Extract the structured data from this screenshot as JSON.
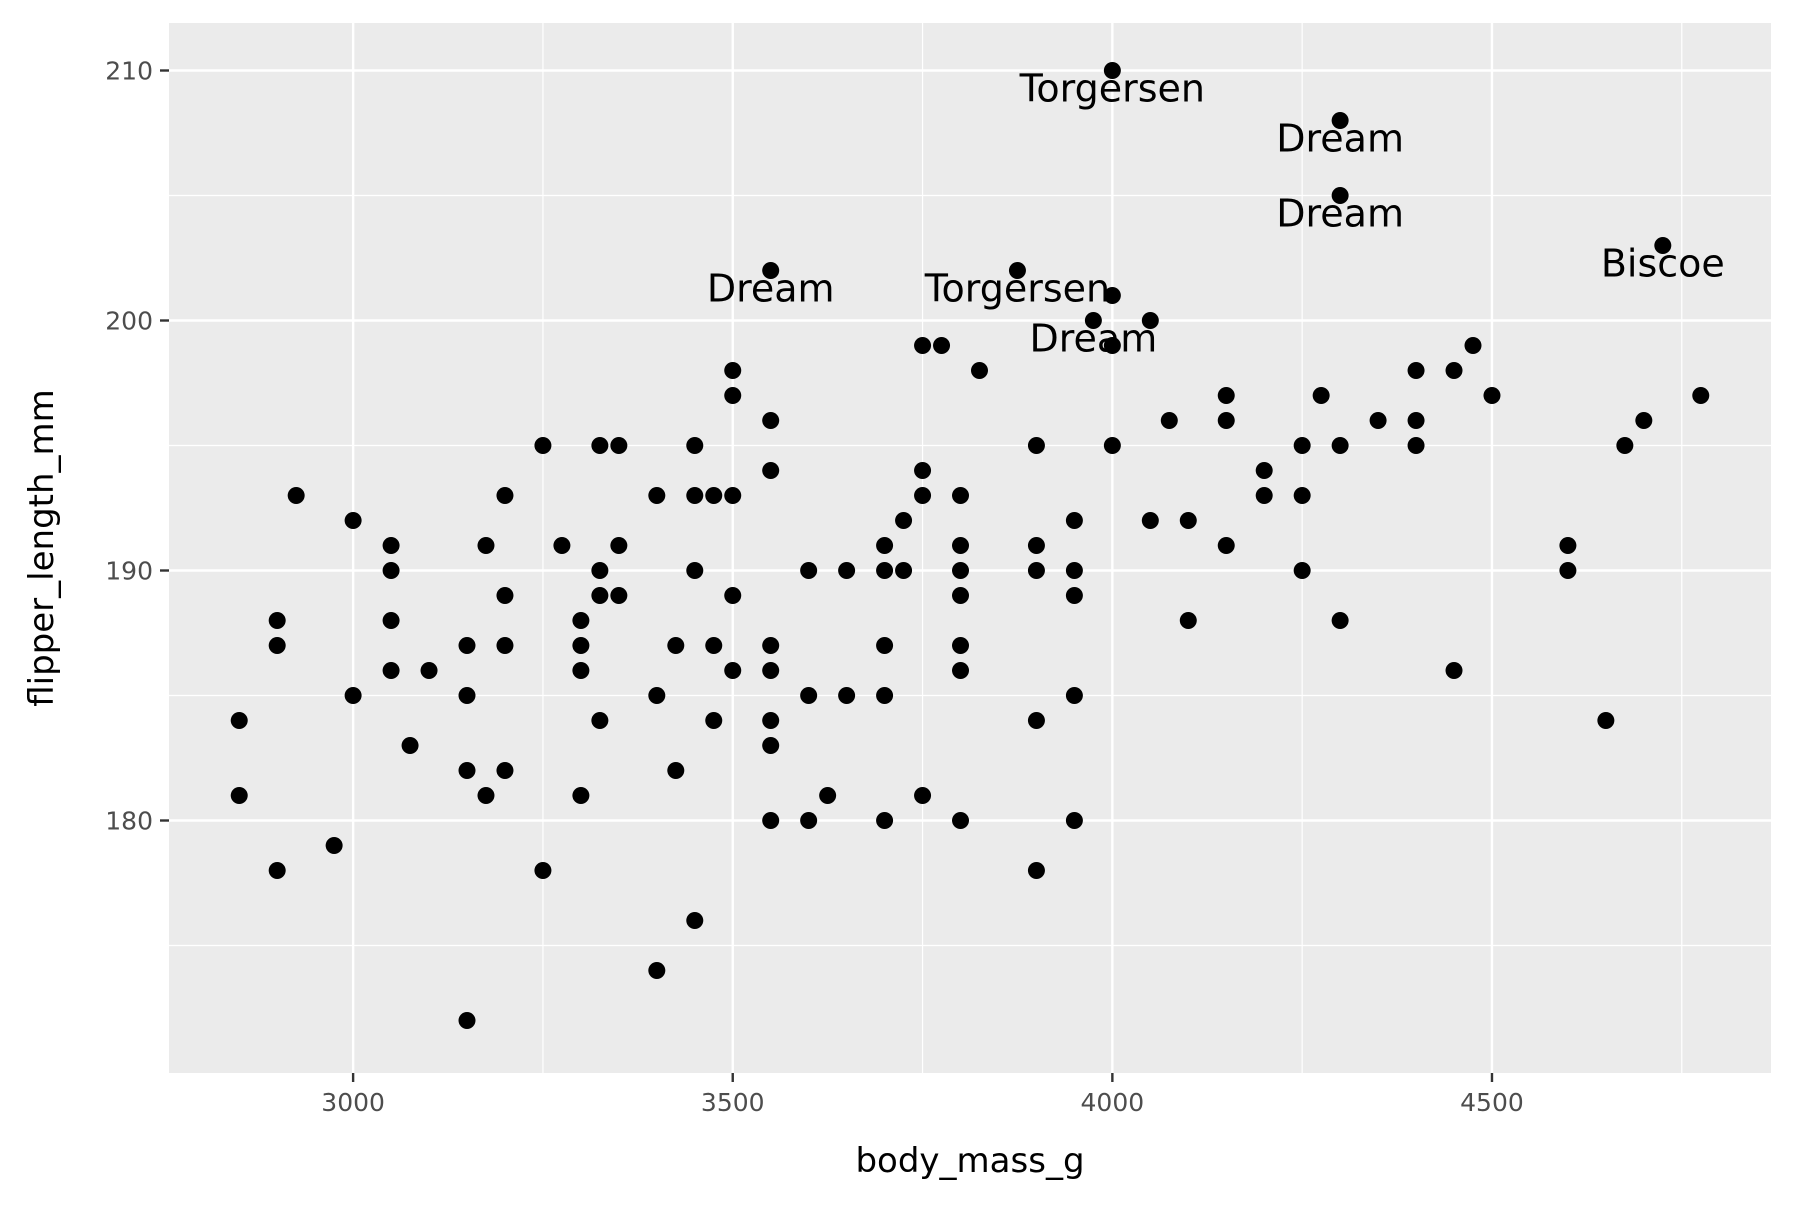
{
  "chart_data": {
    "type": "scatter",
    "title": "",
    "xlabel": "body_mass_g",
    "ylabel": "flipper_length_mm",
    "xlim": [
      2757.5,
      4867.5
    ],
    "ylim": [
      169.9,
      211.9
    ],
    "x_ticks": [
      3000,
      3500,
      4000,
      4500
    ],
    "x_tick_labels": [
      "3000",
      "3500",
      "4000",
      "4500"
    ],
    "x_minor_ticks": [
      2750,
      3250,
      3750,
      4250,
      4750
    ],
    "y_ticks": [
      180,
      190,
      200,
      210
    ],
    "y_tick_labels": [
      "180",
      "190",
      "200",
      "210"
    ],
    "y_minor_ticks": [
      175,
      185,
      195,
      205
    ],
    "grid": true,
    "legend": "none",
    "colors": {
      "panel_background": "#ebebeb",
      "grid": "#ffffff",
      "point": "#000000",
      "tick_label": "#4d4d4d",
      "axis_title": "#000000",
      "tick_mark": "#333333"
    },
    "points": [
      {
        "x": 2850,
        "y": 184
      },
      {
        "x": 2850,
        "y": 181
      },
      {
        "x": 2900,
        "y": 188
      },
      {
        "x": 2900,
        "y": 187
      },
      {
        "x": 2900,
        "y": 178
      },
      {
        "x": 2925,
        "y": 193
      },
      {
        "x": 2975,
        "y": 179
      },
      {
        "x": 3000,
        "y": 192
      },
      {
        "x": 3000,
        "y": 185
      },
      {
        "x": 3050,
        "y": 191
      },
      {
        "x": 3050,
        "y": 190
      },
      {
        "x": 3050,
        "y": 188
      },
      {
        "x": 3050,
        "y": 186
      },
      {
        "x": 3075,
        "y": 183
      },
      {
        "x": 3100,
        "y": 186
      },
      {
        "x": 3150,
        "y": 187
      },
      {
        "x": 3150,
        "y": 185
      },
      {
        "x": 3150,
        "y": 182
      },
      {
        "x": 3150,
        "y": 172
      },
      {
        "x": 3175,
        "y": 191
      },
      {
        "x": 3175,
        "y": 181
      },
      {
        "x": 3200,
        "y": 193
      },
      {
        "x": 3200,
        "y": 189
      },
      {
        "x": 3200,
        "y": 187
      },
      {
        "x": 3200,
        "y": 182
      },
      {
        "x": 3250,
        "y": 195
      },
      {
        "x": 3250,
        "y": 178
      },
      {
        "x": 3275,
        "y": 191
      },
      {
        "x": 3300,
        "y": 188
      },
      {
        "x": 3300,
        "y": 187
      },
      {
        "x": 3300,
        "y": 186
      },
      {
        "x": 3300,
        "y": 181
      },
      {
        "x": 3325,
        "y": 195
      },
      {
        "x": 3325,
        "y": 190
      },
      {
        "x": 3325,
        "y": 189
      },
      {
        "x": 3325,
        "y": 184
      },
      {
        "x": 3350,
        "y": 195
      },
      {
        "x": 3350,
        "y": 191
      },
      {
        "x": 3350,
        "y": 189
      },
      {
        "x": 3400,
        "y": 193
      },
      {
        "x": 3400,
        "y": 185
      },
      {
        "x": 3400,
        "y": 174
      },
      {
        "x": 3425,
        "y": 187
      },
      {
        "x": 3425,
        "y": 182
      },
      {
        "x": 3450,
        "y": 195
      },
      {
        "x": 3450,
        "y": 193
      },
      {
        "x": 3450,
        "y": 190
      },
      {
        "x": 3450,
        "y": 176
      },
      {
        "x": 3475,
        "y": 193
      },
      {
        "x": 3475,
        "y": 187
      },
      {
        "x": 3475,
        "y": 184
      },
      {
        "x": 3500,
        "y": 198
      },
      {
        "x": 3500,
        "y": 197
      },
      {
        "x": 3500,
        "y": 193
      },
      {
        "x": 3500,
        "y": 189
      },
      {
        "x": 3500,
        "y": 186
      },
      {
        "x": 3550,
        "y": 202
      },
      {
        "x": 3550,
        "y": 196
      },
      {
        "x": 3550,
        "y": 194
      },
      {
        "x": 3550,
        "y": 187
      },
      {
        "x": 3550,
        "y": 186
      },
      {
        "x": 3550,
        "y": 184
      },
      {
        "x": 3550,
        "y": 183
      },
      {
        "x": 3550,
        "y": 180
      },
      {
        "x": 3600,
        "y": 190
      },
      {
        "x": 3600,
        "y": 185
      },
      {
        "x": 3600,
        "y": 180
      },
      {
        "x": 3625,
        "y": 181
      },
      {
        "x": 3650,
        "y": 190
      },
      {
        "x": 3650,
        "y": 185
      },
      {
        "x": 3700,
        "y": 191
      },
      {
        "x": 3700,
        "y": 190
      },
      {
        "x": 3700,
        "y": 187
      },
      {
        "x": 3700,
        "y": 185
      },
      {
        "x": 3700,
        "y": 180
      },
      {
        "x": 3725,
        "y": 192
      },
      {
        "x": 3725,
        "y": 190
      },
      {
        "x": 3750,
        "y": 199
      },
      {
        "x": 3750,
        "y": 194
      },
      {
        "x": 3750,
        "y": 193
      },
      {
        "x": 3750,
        "y": 181
      },
      {
        "x": 3775,
        "y": 199
      },
      {
        "x": 3800,
        "y": 193
      },
      {
        "x": 3800,
        "y": 191
      },
      {
        "x": 3800,
        "y": 190
      },
      {
        "x": 3800,
        "y": 189
      },
      {
        "x": 3800,
        "y": 187
      },
      {
        "x": 3800,
        "y": 186
      },
      {
        "x": 3800,
        "y": 180
      },
      {
        "x": 3825,
        "y": 198
      },
      {
        "x": 3875,
        "y": 202
      },
      {
        "x": 3900,
        "y": 195
      },
      {
        "x": 3900,
        "y": 191
      },
      {
        "x": 3900,
        "y": 190
      },
      {
        "x": 3900,
        "y": 184
      },
      {
        "x": 3900,
        "y": 178
      },
      {
        "x": 3950,
        "y": 192
      },
      {
        "x": 3950,
        "y": 190
      },
      {
        "x": 3950,
        "y": 189
      },
      {
        "x": 3950,
        "y": 185
      },
      {
        "x": 3950,
        "y": 180
      },
      {
        "x": 3975,
        "y": 200
      },
      {
        "x": 4000,
        "y": 210
      },
      {
        "x": 4000,
        "y": 201
      },
      {
        "x": 4000,
        "y": 199
      },
      {
        "x": 4000,
        "y": 195
      },
      {
        "x": 4050,
        "y": 200
      },
      {
        "x": 4050,
        "y": 192
      },
      {
        "x": 4075,
        "y": 196
      },
      {
        "x": 4100,
        "y": 192
      },
      {
        "x": 4100,
        "y": 188
      },
      {
        "x": 4150,
        "y": 197
      },
      {
        "x": 4150,
        "y": 196
      },
      {
        "x": 4150,
        "y": 191
      },
      {
        "x": 4200,
        "y": 194
      },
      {
        "x": 4200,
        "y": 193
      },
      {
        "x": 4250,
        "y": 195
      },
      {
        "x": 4250,
        "y": 193
      },
      {
        "x": 4250,
        "y": 190
      },
      {
        "x": 4275,
        "y": 197
      },
      {
        "x": 4300,
        "y": 208
      },
      {
        "x": 4300,
        "y": 205
      },
      {
        "x": 4300,
        "y": 195
      },
      {
        "x": 4300,
        "y": 188
      },
      {
        "x": 4350,
        "y": 196
      },
      {
        "x": 4400,
        "y": 198
      },
      {
        "x": 4400,
        "y": 196
      },
      {
        "x": 4400,
        "y": 195
      },
      {
        "x": 4450,
        "y": 198
      },
      {
        "x": 4450,
        "y": 186
      },
      {
        "x": 4475,
        "y": 199
      },
      {
        "x": 4500,
        "y": 197
      },
      {
        "x": 4600,
        "y": 191
      },
      {
        "x": 4600,
        "y": 190
      },
      {
        "x": 4650,
        "y": 184
      },
      {
        "x": 4675,
        "y": 195
      },
      {
        "x": 4700,
        "y": 196
      },
      {
        "x": 4725,
        "y": 203
      },
      {
        "x": 4775,
        "y": 197
      }
    ],
    "annotations": [
      {
        "text": "Torgersen",
        "x": 4000,
        "y": 210
      },
      {
        "text": "Dream",
        "x": 4300,
        "y": 208
      },
      {
        "text": "Dream",
        "x": 4300,
        "y": 205
      },
      {
        "text": "Biscoe",
        "x": 4725,
        "y": 203
      },
      {
        "text": "Dream",
        "x": 3550,
        "y": 202
      },
      {
        "text": "Torgersen",
        "x": 3875,
        "y": 202
      },
      {
        "text": "Dream",
        "x": 3975,
        "y": 200
      }
    ]
  }
}
